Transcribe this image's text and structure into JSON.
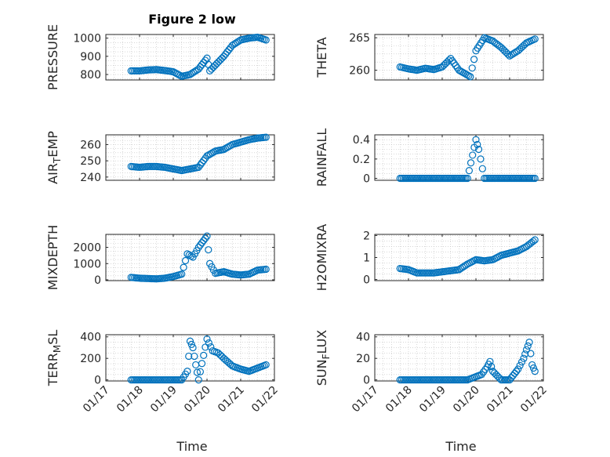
{
  "figure": {
    "title": "Figure 2 low",
    "xlabel_left": "Time",
    "xlabel_right": "Time",
    "marker_color": "#0072bd"
  },
  "chart_data": [
    {
      "type": "scatter",
      "id": "pressure",
      "title": "Figure 2 low",
      "ylabel_parts": [
        "PRESSURE"
      ],
      "xlim": [
        "01/17",
        "01/22"
      ],
      "ylim": [
        770,
        1020
      ],
      "yticks": [
        800,
        900,
        1000
      ],
      "x_ticklabels": [],
      "grid": true,
      "points": [
        [
          "01/17 18:00",
          820
        ],
        [
          "01/18 00:00",
          820
        ],
        [
          "01/18 06:00",
          825
        ],
        [
          "01/18 12:00",
          827
        ],
        [
          "01/18 18:00",
          822
        ],
        [
          "01/19 00:00",
          815
        ],
        [
          "01/19 06:00",
          790
        ],
        [
          "01/19 12:00",
          800
        ],
        [
          "01/19 18:00",
          830
        ],
        [
          "01/20 00:00",
          890
        ],
        [
          "01/20 02:00",
          820
        ],
        [
          "01/20 12:00",
          900
        ],
        [
          "01/20 18:00",
          960
        ],
        [
          "01/21 00:00",
          990
        ],
        [
          "01/21 06:00",
          1000
        ],
        [
          "01/21 12:00",
          1005
        ],
        [
          "01/21 18:00",
          990
        ]
      ]
    },
    {
      "type": "scatter",
      "id": "theta",
      "ylabel_parts": [
        "THETA"
      ],
      "xlim": [
        "01/17",
        "01/22"
      ],
      "ylim": [
        258.5,
        265.5
      ],
      "yticks": [
        260,
        265
      ],
      "x_ticklabels": [],
      "grid": true,
      "points": [
        [
          "01/17 18:00",
          260.5
        ],
        [
          "01/18 00:00",
          260.2
        ],
        [
          "01/18 06:00",
          260.0
        ],
        [
          "01/18 12:00",
          260.3
        ],
        [
          "01/18 18:00",
          260.1
        ],
        [
          "01/19 00:00",
          260.5
        ],
        [
          "01/19 06:00",
          261.8
        ],
        [
          "01/19 12:00",
          260.0
        ],
        [
          "01/19 20:00",
          259.0
        ],
        [
          "01/20 00:00",
          263.0
        ],
        [
          "01/20 06:00",
          265.0
        ],
        [
          "01/20 12:00",
          264.5
        ],
        [
          "01/20 18:00",
          263.5
        ],
        [
          "01/21 00:00",
          262.2
        ],
        [
          "01/21 06:00",
          263.0
        ],
        [
          "01/21 12:00",
          264.2
        ],
        [
          "01/21 18:00",
          264.8
        ]
      ]
    },
    {
      "type": "scatter",
      "id": "air_temp",
      "ylabel_parts": [
        "AIR",
        "T",
        "EMP"
      ],
      "xlim": [
        "01/17",
        "01/22"
      ],
      "ylim": [
        238,
        266
      ],
      "yticks": [
        240,
        250,
        260
      ],
      "x_ticklabels": [],
      "grid": true,
      "points": [
        [
          "01/17 18:00",
          246.5
        ],
        [
          "01/18 00:00",
          246.0
        ],
        [
          "01/18 06:00",
          246.5
        ],
        [
          "01/18 12:00",
          246.5
        ],
        [
          "01/18 18:00",
          246.0
        ],
        [
          "01/19 00:00",
          245.0
        ],
        [
          "01/19 06:00",
          244.0
        ],
        [
          "01/19 12:00",
          245.0
        ],
        [
          "01/19 18:00",
          246.0
        ],
        [
          "01/20 00:00",
          253.0
        ],
        [
          "01/20 06:00",
          256.0
        ],
        [
          "01/20 12:00",
          257.0
        ],
        [
          "01/20 18:00",
          260.0
        ],
        [
          "01/21 00:00",
          261.5
        ],
        [
          "01/21 06:00",
          263.0
        ],
        [
          "01/21 12:00",
          264.0
        ],
        [
          "01/21 18:00",
          264.5
        ]
      ]
    },
    {
      "type": "scatter",
      "id": "rainfall",
      "ylabel_parts": [
        "RAINFALL"
      ],
      "xlim": [
        "01/17",
        "01/22"
      ],
      "ylim": [
        -0.02,
        0.45
      ],
      "yticks": [
        0,
        0.2,
        0.4
      ],
      "x_ticklabels": [],
      "grid": true,
      "points": [
        [
          "01/17 18:00",
          0
        ],
        [
          "01/18 06:00",
          0
        ],
        [
          "01/18 18:00",
          0
        ],
        [
          "01/19 06:00",
          0
        ],
        [
          "01/19 18:00",
          0
        ],
        [
          "01/20 00:00",
          0.4
        ],
        [
          "01/20 02:00",
          0.3
        ],
        [
          "01/20 06:00",
          0
        ],
        [
          "01/20 18:00",
          0
        ],
        [
          "01/21 06:00",
          0
        ],
        [
          "01/21 18:00",
          0
        ]
      ]
    },
    {
      "type": "scatter",
      "id": "mixdepth",
      "ylabel_parts": [
        "MIXDEPTH"
      ],
      "xlim": [
        "01/17",
        "01/22"
      ],
      "ylim": [
        -50,
        2800
      ],
      "yticks": [
        0,
        1000,
        2000
      ],
      "x_ticklabels": [],
      "grid": true,
      "points": [
        [
          "01/17 18:00",
          150
        ],
        [
          "01/18 00:00",
          100
        ],
        [
          "01/18 06:00",
          80
        ],
        [
          "01/18 12:00",
          60
        ],
        [
          "01/18 18:00",
          100
        ],
        [
          "01/19 00:00",
          200
        ],
        [
          "01/19 06:00",
          350
        ],
        [
          "01/19 10:00",
          1600
        ],
        [
          "01/19 14:00",
          1400
        ],
        [
          "01/19 18:00",
          2000
        ],
        [
          "01/20 00:00",
          2700
        ],
        [
          "01/20 02:00",
          1000
        ],
        [
          "01/20 06:00",
          400
        ],
        [
          "01/20 12:00",
          500
        ],
        [
          "01/20 18:00",
          350
        ],
        [
          "01/21 00:00",
          300
        ],
        [
          "01/21 06:00",
          350
        ],
        [
          "01/21 12:00",
          600
        ],
        [
          "01/21 18:00",
          650
        ]
      ]
    },
    {
      "type": "scatter",
      "id": "h2omixra",
      "ylabel_parts": [
        "H2OMIXRA"
      ],
      "xlim": [
        "01/17",
        "01/22"
      ],
      "ylim": [
        -0.05,
        2.05
      ],
      "yticks": [
        0,
        1,
        2
      ],
      "x_ticklabels": [],
      "grid": true,
      "points": [
        [
          "01/17 18:00",
          0.5
        ],
        [
          "01/18 00:00",
          0.45
        ],
        [
          "01/18 06:00",
          0.3
        ],
        [
          "01/18 12:00",
          0.3
        ],
        [
          "01/18 18:00",
          0.3
        ],
        [
          "01/19 00:00",
          0.35
        ],
        [
          "01/19 06:00",
          0.4
        ],
        [
          "01/19 12:00",
          0.45
        ],
        [
          "01/19 18:00",
          0.7
        ],
        [
          "01/20 00:00",
          0.9
        ],
        [
          "01/20 06:00",
          0.85
        ],
        [
          "01/20 12:00",
          0.9
        ],
        [
          "01/20 18:00",
          1.1
        ],
        [
          "01/21 00:00",
          1.2
        ],
        [
          "01/21 06:00",
          1.3
        ],
        [
          "01/21 12:00",
          1.5
        ],
        [
          "01/21 18:00",
          1.8
        ]
      ]
    },
    {
      "type": "scatter",
      "id": "terr_msl",
      "ylabel_parts": [
        "TERR",
        "M",
        "SL"
      ],
      "xlim": [
        "01/17",
        "01/22"
      ],
      "ylim": [
        -10,
        420
      ],
      "yticks": [
        0,
        200,
        400
      ],
      "x_ticklabels": [
        "01/17",
        "01/18",
        "01/19",
        "01/20",
        "01/21",
        "01/22"
      ],
      "grid": true,
      "points": [
        [
          "01/17 18:00",
          0
        ],
        [
          "01/18 06:00",
          0
        ],
        [
          "01/18 18:00",
          0
        ],
        [
          "01/19 06:00",
          0
        ],
        [
          "01/19 10:00",
          80
        ],
        [
          "01/19 12:00",
          360
        ],
        [
          "01/19 14:00",
          300
        ],
        [
          "01/19 16:00",
          140
        ],
        [
          "01/19 18:00",
          0
        ],
        [
          "01/20 00:00",
          380
        ],
        [
          "01/20 04:00",
          270
        ],
        [
          "01/20 08:00",
          250
        ],
        [
          "01/20 12:00",
          200
        ],
        [
          "01/20 18:00",
          130
        ],
        [
          "01/21 00:00",
          100
        ],
        [
          "01/21 06:00",
          80
        ],
        [
          "01/21 12:00",
          110
        ],
        [
          "01/21 18:00",
          140
        ]
      ]
    },
    {
      "type": "scatter",
      "id": "sun_flux",
      "ylabel_parts": [
        "SUN",
        "F",
        "LUX"
      ],
      "xlim": [
        "01/17",
        "01/22"
      ],
      "ylim": [
        -1,
        42
      ],
      "yticks": [
        0,
        20,
        40
      ],
      "x_ticklabels": [
        "01/17",
        "01/18",
        "01/19",
        "01/20",
        "01/21",
        "01/22"
      ],
      "grid": true,
      "points": [
        [
          "01/17 18:00",
          0
        ],
        [
          "01/18 06:00",
          0
        ],
        [
          "01/18 18:00",
          0
        ],
        [
          "01/19 06:00",
          0
        ],
        [
          "01/19 18:00",
          0
        ],
        [
          "01/20 04:00",
          5
        ],
        [
          "01/20 08:00",
          12
        ],
        [
          "01/20 10:00",
          17
        ],
        [
          "01/20 12:00",
          8
        ],
        [
          "01/20 18:00",
          0
        ],
        [
          "01/21 00:00",
          0
        ],
        [
          "01/21 06:00",
          10
        ],
        [
          "01/21 10:00",
          20
        ],
        [
          "01/21 12:00",
          28
        ],
        [
          "01/21 14:00",
          35
        ],
        [
          "01/21 16:00",
          14
        ],
        [
          "01/21 18:00",
          8
        ]
      ]
    }
  ]
}
